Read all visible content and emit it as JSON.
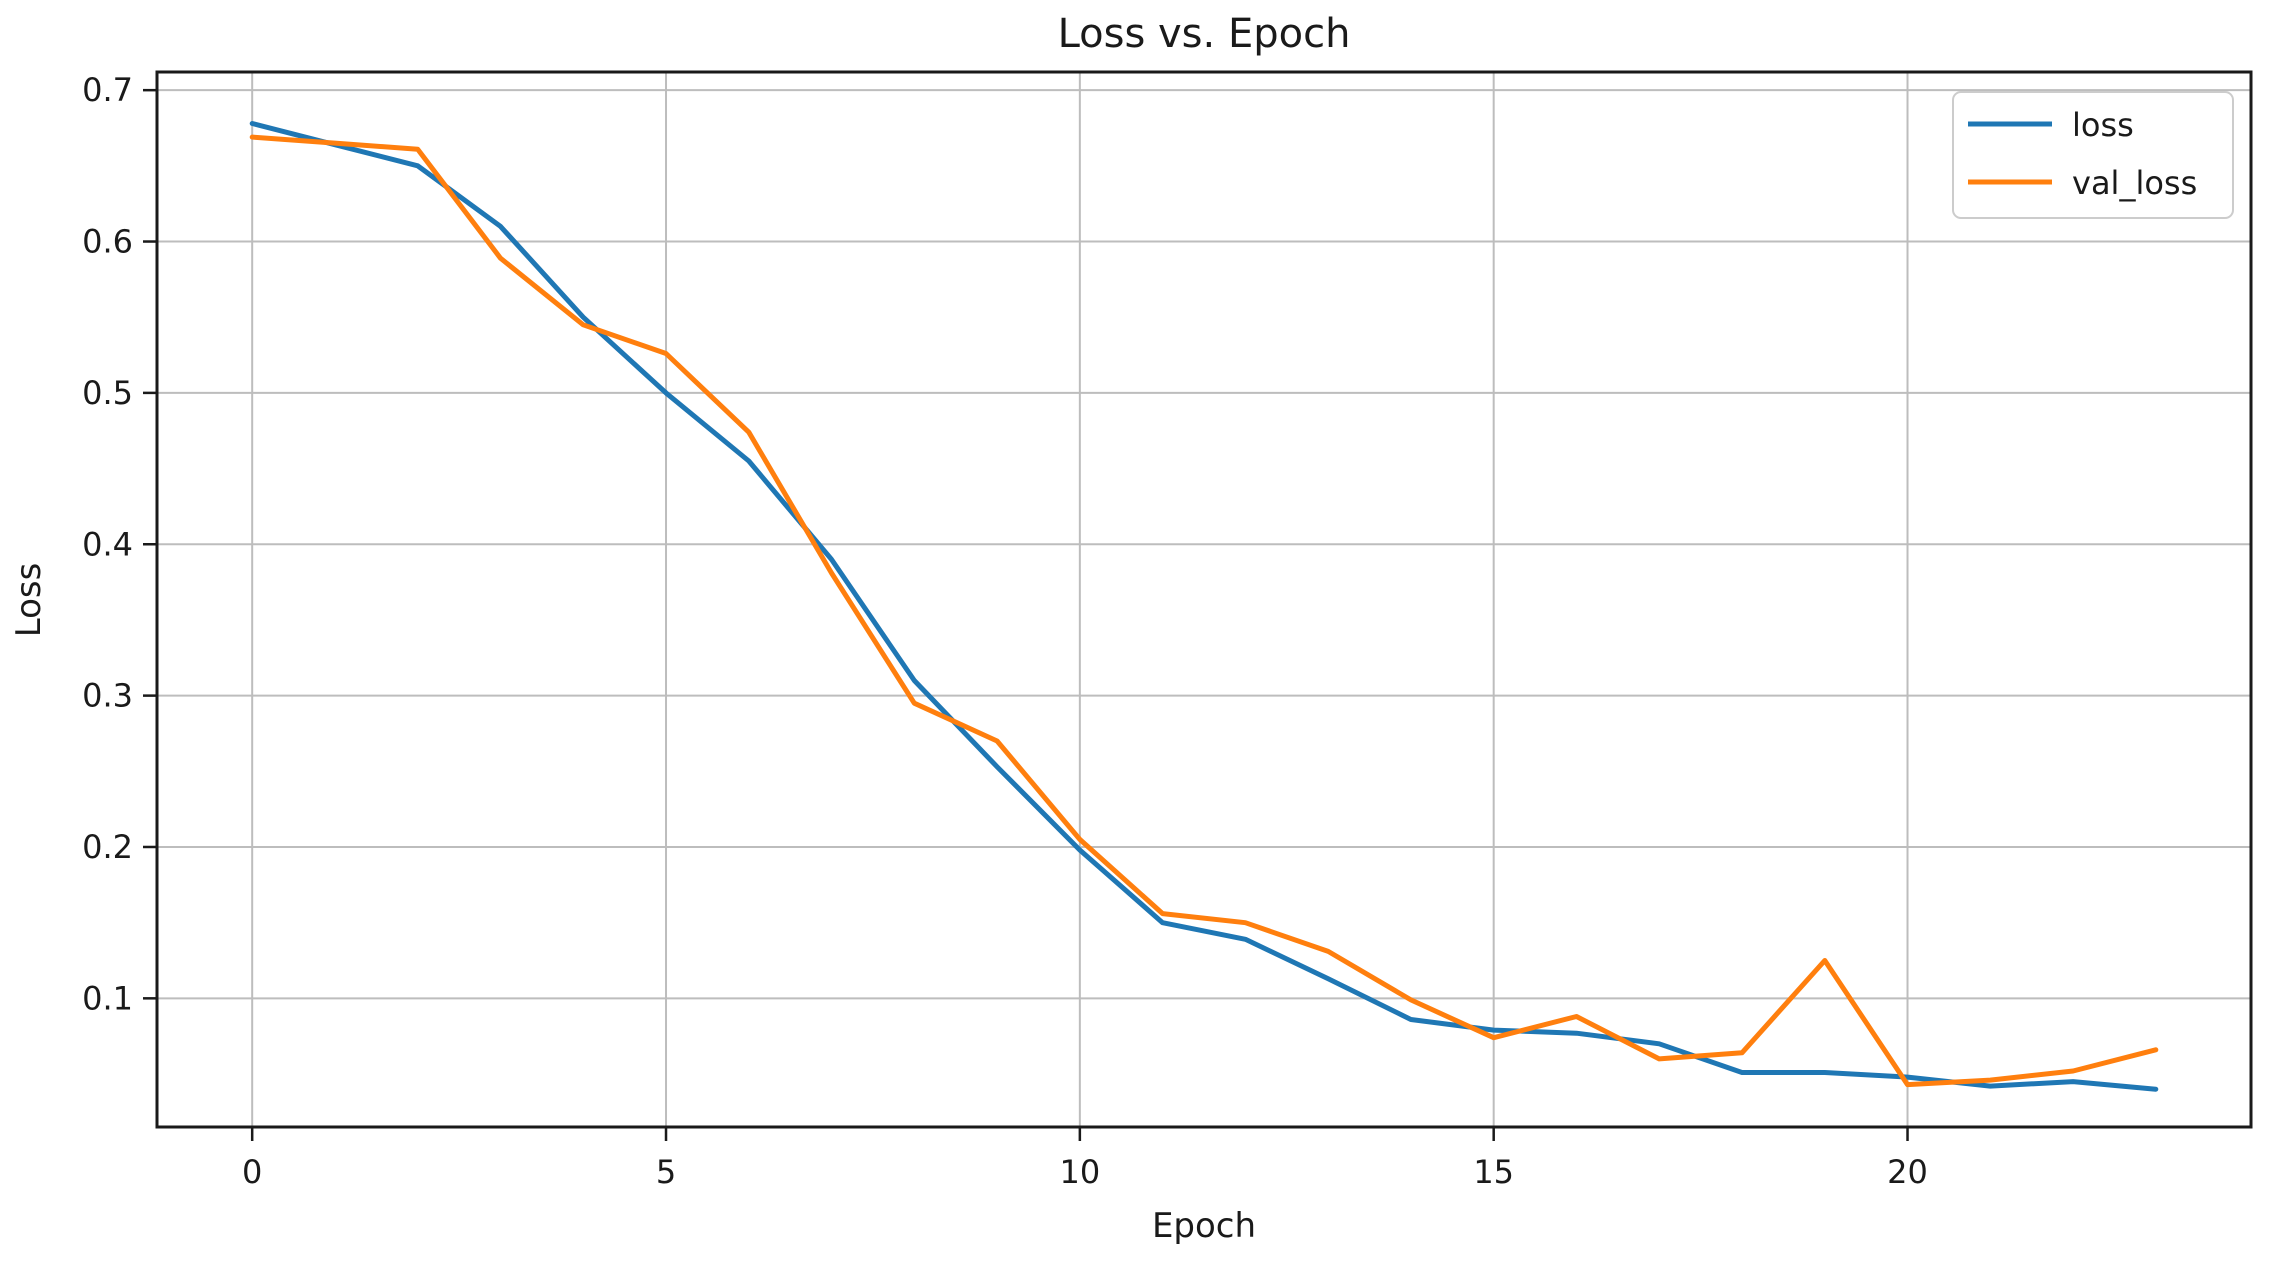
{
  "chart_data": {
    "type": "line",
    "title": "Loss vs. Epoch",
    "xlabel": "Epoch",
    "ylabel": "Loss",
    "grid": true,
    "legend_position": "upper right",
    "xlim": [
      -1.15,
      24.15
    ],
    "ylim": [
      0.015,
      0.712
    ],
    "x_ticks": [
      0,
      5,
      10,
      15,
      20
    ],
    "x_tick_labels": [
      "0",
      "5",
      "10",
      "15",
      "20"
    ],
    "y_ticks": [
      0.1,
      0.2,
      0.3,
      0.4,
      0.5,
      0.6,
      0.7
    ],
    "y_tick_labels": [
      "0.1",
      "0.2",
      "0.3",
      "0.4",
      "0.5",
      "0.6",
      "0.7"
    ],
    "x": [
      0,
      1,
      2,
      3,
      4,
      5,
      6,
      7,
      8,
      9,
      10,
      11,
      12,
      13,
      14,
      15,
      16,
      17,
      18,
      19,
      20,
      21,
      22,
      23
    ],
    "series": [
      {
        "name": "loss",
        "color": "#1f77b4",
        "values": [
          0.678,
          0.664,
          0.65,
          0.61,
          0.55,
          0.5,
          0.455,
          0.39,
          0.31,
          0.253,
          0.198,
          0.15,
          0.139,
          0.113,
          0.086,
          0.079,
          0.077,
          0.07,
          0.051,
          0.051,
          0.048,
          0.042,
          0.045,
          0.04
        ]
      },
      {
        "name": "val_loss",
        "color": "#ff7f0e",
        "values": [
          0.669,
          0.665,
          0.661,
          0.589,
          0.545,
          0.526,
          0.474,
          0.381,
          0.295,
          0.27,
          0.205,
          0.156,
          0.15,
          0.131,
          0.099,
          0.074,
          0.088,
          0.06,
          0.064,
          0.125,
          0.043,
          0.046,
          0.052,
          0.066
        ]
      }
    ]
  },
  "style": {
    "background": "#ffffff",
    "grid_color": "#bdbdbd",
    "spine_color": "#1a1a1a",
    "text_color": "#1a1a1a",
    "legend_border": "#cccccc"
  }
}
